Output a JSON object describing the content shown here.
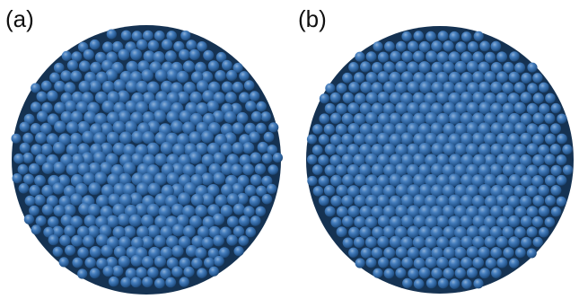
{
  "panels": [
    {
      "label": "(a)",
      "particle_color": "#2f6fb6"
    },
    {
      "label": "(b)",
      "particle_color": "#2f6fb6"
    }
  ]
}
